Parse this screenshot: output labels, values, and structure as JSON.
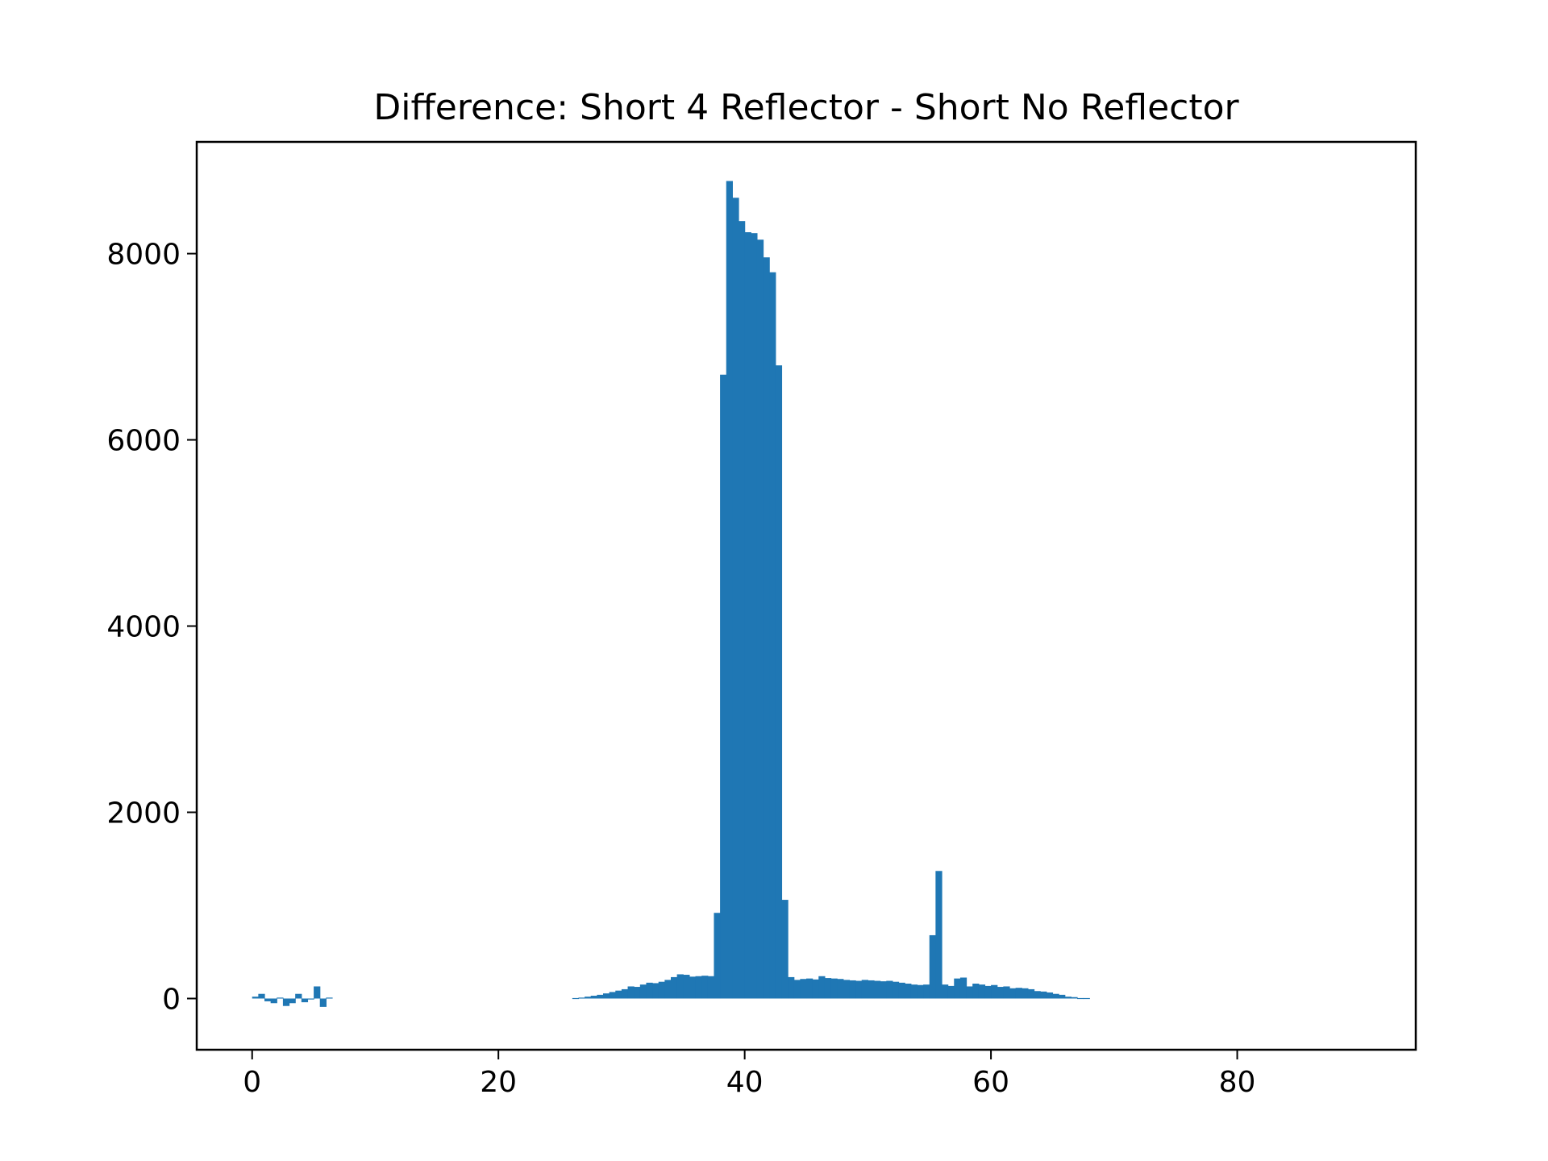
{
  "chart_data": {
    "type": "bar",
    "title": "Difference: Short 4 Reflector - Short No Reflector",
    "xlabel": "",
    "ylabel": "",
    "xlim": [
      -4.5,
      94.5
    ],
    "ylim": [
      -550,
      9200
    ],
    "xticks": [
      0,
      20,
      40,
      60,
      80
    ],
    "yticks": [
      0,
      2000,
      4000,
      6000,
      8000
    ],
    "grid": false,
    "bar_color": "#1f77b4",
    "bin_width": 0.5,
    "x_start": 0,
    "values": [
      20,
      50,
      -30,
      -50,
      10,
      -80,
      -50,
      50,
      -40,
      -10,
      130,
      -90,
      10,
      0,
      0,
      0,
      0,
      0,
      0,
      0,
      0,
      0,
      0,
      0,
      0,
      0,
      0,
      0,
      0,
      0,
      0,
      0,
      0,
      0,
      0,
      0,
      0,
      0,
      0,
      0,
      0,
      0,
      0,
      0,
      0,
      0,
      0,
      0,
      0,
      0,
      0,
      0,
      0,
      0,
      0,
      0,
      0,
      0,
      0,
      0,
      0,
      0,
      0,
      0,
      0,
      0,
      0,
      0,
      0,
      0,
      0,
      0,
      0,
      0,
      0,
      0,
      0,
      0,
      0,
      0,
      0,
      0,
      0,
      0,
      0,
      0,
      0,
      0,
      0,
      0,
      0,
      0,
      0,
      0,
      0,
      0,
      0,
      0,
      0,
      0,
      0,
      0,
      0,
      0,
      0,
      0,
      0,
      0,
      0,
      0,
      0,
      0,
      0,
      0,
      0,
      0,
      0,
      0,
      0,
      0,
      0,
      0,
      0,
      0,
      0,
      0,
      0,
      0,
      0,
      0,
      0,
      0,
      0,
      0,
      0,
      0,
      0,
      0,
      0,
      0,
      0,
      0,
      0,
      0,
      0,
      0,
      0,
      0,
      0,
      0,
      0,
      0,
      0,
      0,
      0,
      0,
      0,
      0,
      0,
      0,
      0,
      0,
      0,
      0,
      0,
      0,
      0,
      0,
      0,
      0,
      0,
      0,
      0,
      0,
      0,
      0,
      0,
      0,
      0,
      0,
      0,
      0,
      0,
      0,
      0,
      0,
      0,
      0,
      0,
      0,
      0,
      0,
      0,
      0,
      0,
      0,
      0,
      0,
      0,
      0,
      0,
      0,
      0,
      0,
      0,
      0,
      0,
      0,
      0,
      0,
      0,
      0,
      0,
      0,
      0,
      0,
      0,
      0,
      0,
      0,
      0,
      0,
      0,
      0,
      0,
      0,
      0,
      0,
      0,
      0,
      0,
      0,
      0,
      0,
      0,
      0,
      0,
      0,
      0,
      0,
      0,
      0,
      0,
      0,
      0,
      0,
      0,
      0,
      0,
      0,
      0,
      0,
      0,
      0,
      0,
      0
    ],
    "segments": [
      {
        "x_start": 0,
        "values": [
          20,
          50,
          -30,
          -50,
          10,
          -80,
          -50,
          50,
          -40,
          -10,
          130,
          -90,
          10
        ]
      },
      {
        "x_start": 26,
        "values": [
          5,
          10,
          20,
          30,
          40,
          55,
          70,
          85,
          100,
          130,
          125,
          150,
          170,
          165,
          180,
          200,
          230,
          260,
          255,
          235,
          240,
          245,
          240,
          920,
          6700,
          8780,
          8600,
          8350,
          8230,
          8220,
          8150,
          7960,
          7800,
          6800,
          1060,
          230,
          200,
          210,
          215,
          205,
          240,
          220,
          215,
          210,
          200,
          195,
          190,
          200,
          195,
          190,
          185,
          190,
          180,
          170,
          160,
          150,
          145,
          150,
          680,
          1370,
          150,
          135,
          215,
          225,
          130,
          160,
          150,
          135,
          145,
          125,
          130,
          110,
          115,
          110,
          100,
          80,
          75,
          65,
          50,
          40,
          20,
          15,
          5,
          5
        ]
      }
    ]
  }
}
